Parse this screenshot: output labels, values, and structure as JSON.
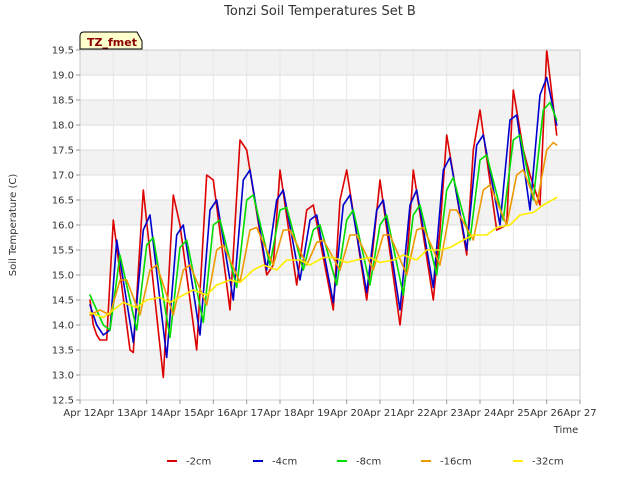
{
  "chart_data": {
    "type": "line",
    "title": "Tonzi Soil Temperatures Set B",
    "xlabel": "Time",
    "ylabel": "Soil Temperature (C)",
    "badge": "TZ_fmet",
    "x_ticks": [
      "Apr 12",
      "Apr 13",
      "Apr 14",
      "Apr 15",
      "Apr 16",
      "Apr 17",
      "Apr 18",
      "Apr 19",
      "Apr 20",
      "Apr 21",
      "Apr 22",
      "Apr 23",
      "Apr 24",
      "Apr 25",
      "Apr 26",
      "Apr 27"
    ],
    "y_ticks": [
      "12.5",
      "13.0",
      "13.5",
      "14.0",
      "14.5",
      "15.0",
      "15.5",
      "16.0",
      "16.5",
      "17.0",
      "17.5",
      "18.0",
      "18.5",
      "19.0",
      "19.5"
    ],
    "xlim": [
      "Apr 12",
      "Apr 27"
    ],
    "ylim": [
      12.5,
      19.5
    ],
    "grid": true,
    "legend_position": "bottom",
    "colors": {
      "-2cm": "#dd0000",
      "-4cm": "#0000cc",
      "-8cm": "#00dd00",
      "-16cm": "#ee9900",
      "-32cm": "#ffee00"
    },
    "series": [
      {
        "name": "-2cm",
        "color": "#dd0000",
        "x": [
          12.3,
          12.4,
          12.5,
          12.6,
          12.8,
          13.0,
          13.5,
          13.6,
          13.9,
          14.5,
          14.8,
          15.0,
          15.5,
          15.8,
          16.0,
          16.5,
          16.8,
          17.0,
          17.6,
          17.8,
          18.0,
          18.5,
          18.8,
          19.0,
          19.6,
          19.8,
          20.0,
          20.6,
          20.8,
          21.0,
          21.6,
          21.8,
          22.0,
          22.6,
          22.8,
          23.0,
          23.6,
          23.8,
          24.0,
          24.5,
          24.8,
          25.0,
          25.3,
          25.5,
          25.8,
          26.0,
          26.3
        ],
        "y": [
          14.5,
          14.0,
          13.8,
          13.7,
          13.7,
          16.1,
          13.5,
          13.45,
          16.7,
          12.95,
          16.6,
          16.0,
          13.5,
          17.0,
          16.9,
          14.3,
          17.7,
          17.5,
          15.0,
          15.2,
          17.1,
          14.8,
          16.3,
          16.4,
          14.3,
          16.5,
          17.1,
          14.5,
          15.6,
          16.9,
          14.0,
          15.2,
          17.1,
          14.5,
          15.9,
          17.8,
          15.4,
          17.5,
          18.3,
          15.9,
          16.0,
          18.7,
          17.5,
          17.0,
          16.4,
          19.5,
          17.8
        ]
      },
      {
        "name": "-4cm",
        "color": "#0000cc",
        "x": [
          12.3,
          12.5,
          12.7,
          12.9,
          13.1,
          13.6,
          13.9,
          14.1,
          14.6,
          14.9,
          15.1,
          15.6,
          15.9,
          16.1,
          16.6,
          16.9,
          17.1,
          17.6,
          17.9,
          18.1,
          18.6,
          18.9,
          19.1,
          19.6,
          19.9,
          20.1,
          20.6,
          20.9,
          21.1,
          21.6,
          21.9,
          22.1,
          22.6,
          22.9,
          23.1,
          23.6,
          23.9,
          24.1,
          24.6,
          24.9,
          25.1,
          25.5,
          25.8,
          26.0,
          26.3
        ],
        "y": [
          14.4,
          14.0,
          13.8,
          13.9,
          15.7,
          13.65,
          15.9,
          16.2,
          13.35,
          15.8,
          16.0,
          13.8,
          16.3,
          16.5,
          14.5,
          16.9,
          17.1,
          15.1,
          16.5,
          16.7,
          14.9,
          16.1,
          16.2,
          14.45,
          16.4,
          16.6,
          14.65,
          16.3,
          16.5,
          14.3,
          16.4,
          16.7,
          14.75,
          17.1,
          17.35,
          15.5,
          17.6,
          17.8,
          16.0,
          18.1,
          18.2,
          16.3,
          18.6,
          18.95,
          18.0
        ]
      },
      {
        "name": "-8cm",
        "color": "#00dd00",
        "x": [
          12.3,
          12.5,
          12.7,
          12.9,
          13.2,
          13.7,
          14.0,
          14.2,
          14.7,
          15.0,
          15.2,
          15.7,
          16.0,
          16.2,
          16.7,
          17.0,
          17.2,
          17.7,
          18.0,
          18.2,
          18.7,
          19.0,
          19.2,
          19.7,
          20.0,
          20.2,
          20.7,
          21.0,
          21.2,
          21.7,
          22.0,
          22.2,
          22.7,
          23.0,
          23.2,
          23.7,
          24.0,
          24.2,
          24.7,
          25.0,
          25.2,
          25.6,
          25.9,
          26.1,
          26.3
        ],
        "y": [
          14.6,
          14.3,
          14.0,
          13.9,
          15.4,
          13.9,
          15.6,
          15.75,
          13.75,
          15.55,
          15.7,
          14.05,
          16.0,
          16.1,
          14.75,
          16.5,
          16.6,
          15.2,
          16.3,
          16.35,
          15.1,
          15.9,
          16.0,
          14.8,
          16.1,
          16.3,
          14.8,
          16.0,
          16.2,
          14.6,
          16.2,
          16.4,
          15.0,
          16.7,
          16.95,
          15.7,
          17.3,
          17.4,
          16.1,
          17.7,
          17.8,
          16.5,
          18.3,
          18.45,
          18.1
        ]
      },
      {
        "name": "-16cm",
        "color": "#ee9900",
        "x": [
          12.3,
          12.6,
          12.9,
          13.2,
          13.4,
          13.8,
          14.1,
          14.3,
          14.8,
          15.1,
          15.3,
          15.8,
          16.1,
          16.3,
          16.8,
          17.1,
          17.3,
          17.8,
          18.1,
          18.3,
          18.8,
          19.1,
          19.3,
          19.8,
          20.1,
          20.3,
          20.8,
          21.1,
          21.3,
          21.8,
          22.1,
          22.3,
          22.8,
          23.1,
          23.3,
          23.8,
          24.1,
          24.3,
          24.8,
          25.1,
          25.3,
          25.7,
          26.0,
          26.2,
          26.3
        ],
        "y": [
          14.2,
          14.3,
          14.2,
          14.9,
          14.9,
          14.2,
          15.1,
          15.2,
          14.2,
          15.1,
          15.2,
          14.4,
          15.5,
          15.6,
          14.85,
          15.9,
          15.95,
          15.2,
          15.9,
          15.9,
          15.2,
          15.65,
          15.7,
          15.1,
          15.8,
          15.8,
          15.1,
          15.8,
          15.8,
          15.0,
          15.9,
          15.95,
          15.2,
          16.3,
          16.3,
          15.7,
          16.7,
          16.8,
          16.0,
          17.0,
          17.1,
          16.4,
          17.5,
          17.65,
          17.6
        ]
      },
      {
        "name": "-32cm",
        "color": "#ffee00",
        "x": [
          12.3,
          12.7,
          13.0,
          13.3,
          13.7,
          14.0,
          14.4,
          14.7,
          15.1,
          15.4,
          15.8,
          16.1,
          16.5,
          16.8,
          17.2,
          17.5,
          17.9,
          18.2,
          18.6,
          18.9,
          19.3,
          19.6,
          20.0,
          20.3,
          20.7,
          21.0,
          21.4,
          21.7,
          22.1,
          22.4,
          22.8,
          23.1,
          23.5,
          23.8,
          24.2,
          24.5,
          24.9,
          25.2,
          25.6,
          25.9,
          26.3
        ],
        "y": [
          14.25,
          14.15,
          14.3,
          14.45,
          14.35,
          14.5,
          14.55,
          14.45,
          14.6,
          14.7,
          14.6,
          14.8,
          14.9,
          14.85,
          15.1,
          15.2,
          15.1,
          15.3,
          15.3,
          15.2,
          15.35,
          15.35,
          15.25,
          15.3,
          15.35,
          15.25,
          15.3,
          15.4,
          15.3,
          15.5,
          15.5,
          15.55,
          15.7,
          15.8,
          15.8,
          15.95,
          16.0,
          16.2,
          16.25,
          16.4,
          16.55
        ]
      }
    ]
  }
}
